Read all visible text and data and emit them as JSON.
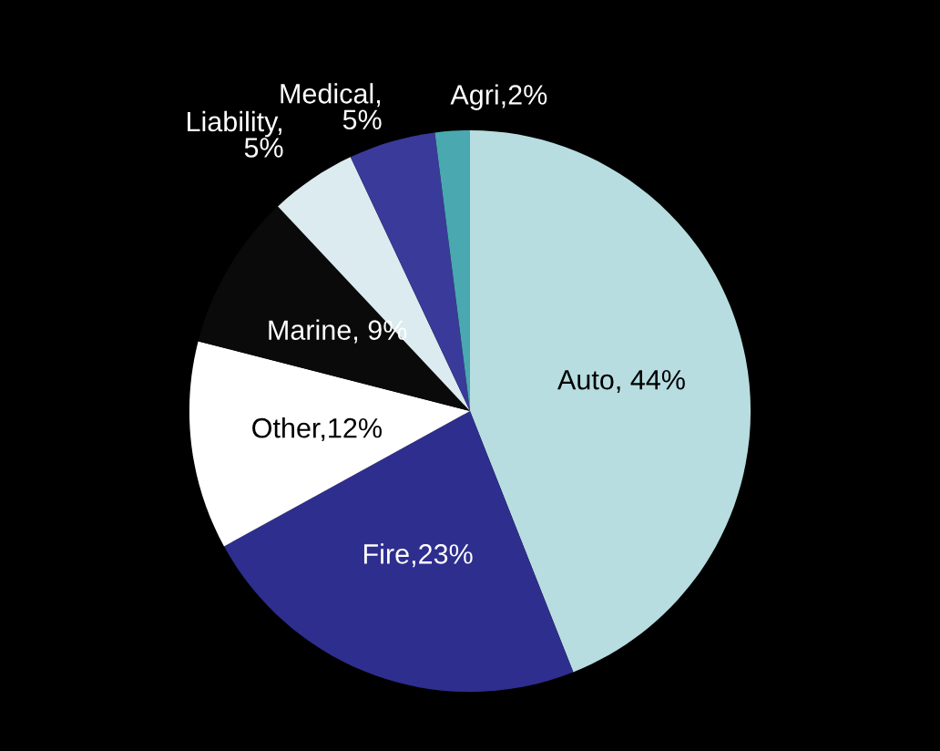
{
  "chart_data": {
    "type": "pie",
    "categories": [
      "Auto, 44%",
      "Fire,23%",
      "Other,12%",
      "Marine, 9%",
      "Liability,\n5%",
      "Medical,\n5%",
      "Agri,2%"
    ],
    "values": [
      44,
      23,
      12,
      9,
      5,
      5,
      2
    ],
    "colors": [
      "#b7dde0",
      "#2e2e8f",
      "#ffffff",
      "#0a0a0a",
      "#dcebf0",
      "#3a3a9a",
      "#4aa8b0"
    ],
    "legend": false
  }
}
